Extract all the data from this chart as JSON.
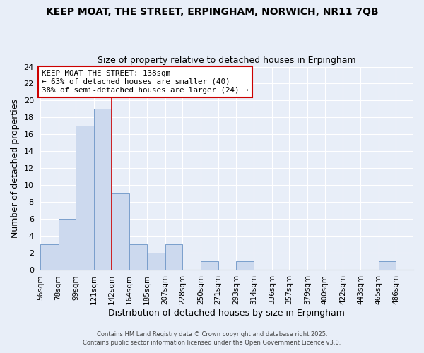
{
  "title": "KEEP MOAT, THE STREET, ERPINGHAM, NORWICH, NR11 7QB",
  "subtitle": "Size of property relative to detached houses in Erpingham",
  "xlabel": "Distribution of detached houses by size in Erpingham",
  "ylabel": "Number of detached properties",
  "bar_color": "#ccd9ee",
  "bar_edge_color": "#7a9fcc",
  "background_color": "#e8eef8",
  "plot_bg_color": "#e8eef8",
  "grid_color": "#ffffff",
  "bin_edges": [
    56,
    78,
    99,
    121,
    142,
    164,
    185,
    207,
    228,
    250,
    271,
    293,
    314,
    336,
    357,
    379,
    400,
    422,
    443,
    465,
    486
  ],
  "bin_labels": [
    "56sqm",
    "78sqm",
    "99sqm",
    "121sqm",
    "142sqm",
    "164sqm",
    "185sqm",
    "207sqm",
    "228sqm",
    "250sqm",
    "271sqm",
    "293sqm",
    "314sqm",
    "336sqm",
    "357sqm",
    "379sqm",
    "400sqm",
    "422sqm",
    "443sqm",
    "465sqm",
    "486sqm"
  ],
  "counts": [
    3,
    6,
    17,
    19,
    9,
    3,
    2,
    3,
    0,
    1,
    0,
    1,
    0,
    0,
    0,
    0,
    0,
    0,
    0,
    1
  ],
  "vline_x": 142,
  "annotation_line1": "KEEP MOAT THE STREET: 138sqm",
  "annotation_line2": "← 63% of detached houses are smaller (40)",
  "annotation_line3": "38% of semi-detached houses are larger (24) →",
  "annotation_box_color": "#ffffff",
  "annotation_border_color": "#cc0000",
  "vline_color": "#cc0000",
  "ylim": [
    0,
    24
  ],
  "yticks": [
    0,
    2,
    4,
    6,
    8,
    10,
    12,
    14,
    16,
    18,
    20,
    22,
    24
  ],
  "footer1": "Contains HM Land Registry data © Crown copyright and database right 2025.",
  "footer2": "Contains public sector information licensed under the Open Government Licence v3.0."
}
